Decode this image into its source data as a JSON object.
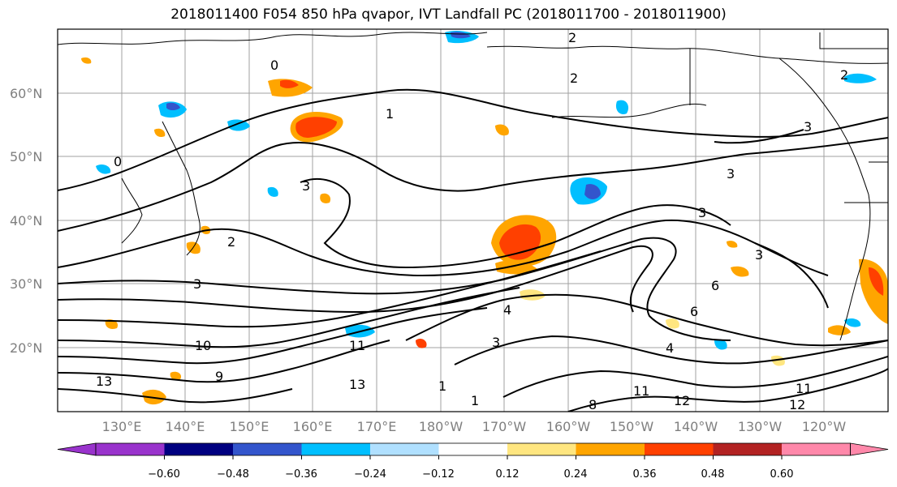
{
  "title": "2018011400 F054 850 hPa qvapor, IVT Landfall PC (2018011700 - 2018011900)",
  "lat_labels": [
    "60°N",
    "50°N",
    "40°N",
    "30°N",
    "20°N"
  ],
  "lon_labels": [
    "130°E",
    "140°E",
    "150°E",
    "160°E",
    "170°E",
    "180°W",
    "170°W",
    "160°W",
    "150°W",
    "140°W",
    "130°W",
    "120°W"
  ],
  "colorbar": {
    "ticks": [
      "−0.60",
      "−0.48",
      "−0.36",
      "−0.24",
      "−0.12",
      "0.12",
      "0.24",
      "0.36",
      "0.48",
      "0.60"
    ],
    "colors": [
      "#9933cc",
      "#000080",
      "#3355cc",
      "#00bfff",
      "#b0e0ff",
      "#ffffff",
      "#ffe680",
      "#ffa500",
      "#ff4000",
      "#b22222",
      "#ff88aa"
    ]
  },
  "contour_labels": [
    "2",
    "0",
    "1",
    "0",
    "3",
    "3",
    "2",
    "3",
    "3",
    "3",
    "6",
    "6",
    "10",
    "13",
    "11",
    "9",
    "3",
    "4",
    "11",
    "12",
    "12",
    "11",
    "8",
    "4",
    "1",
    "13",
    "1",
    "2",
    "2",
    "3"
  ]
}
